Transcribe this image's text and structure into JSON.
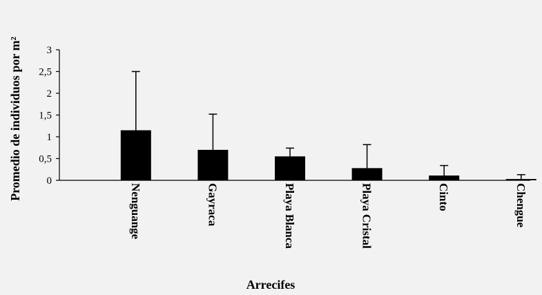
{
  "chart_data": {
    "type": "bar",
    "title": "",
    "xlabel": "Arrecifes",
    "ylabel": "Promedio de individuos por m²",
    "categories": [
      "Nenguange",
      "Gayraca",
      "Playa Blanca",
      "Playa Cristal",
      "Cinto",
      "Chengue"
    ],
    "series": [
      {
        "values": [
          1.15,
          0.7,
          0.55,
          0.28,
          0.11,
          0.03
        ],
        "error_upper": [
          2.5,
          1.52,
          0.74,
          0.82,
          0.34,
          0.13
        ]
      }
    ],
    "ylim": [
      0,
      3
    ],
    "yticks": [
      "0",
      "0,5",
      "1",
      "1,5",
      "2",
      "2,5",
      "3"
    ],
    "ytick_values": [
      0,
      0.5,
      1,
      1.5,
      2,
      2.5,
      3
    ],
    "grid": false,
    "legend": "none",
    "bar_color": "#000000"
  }
}
